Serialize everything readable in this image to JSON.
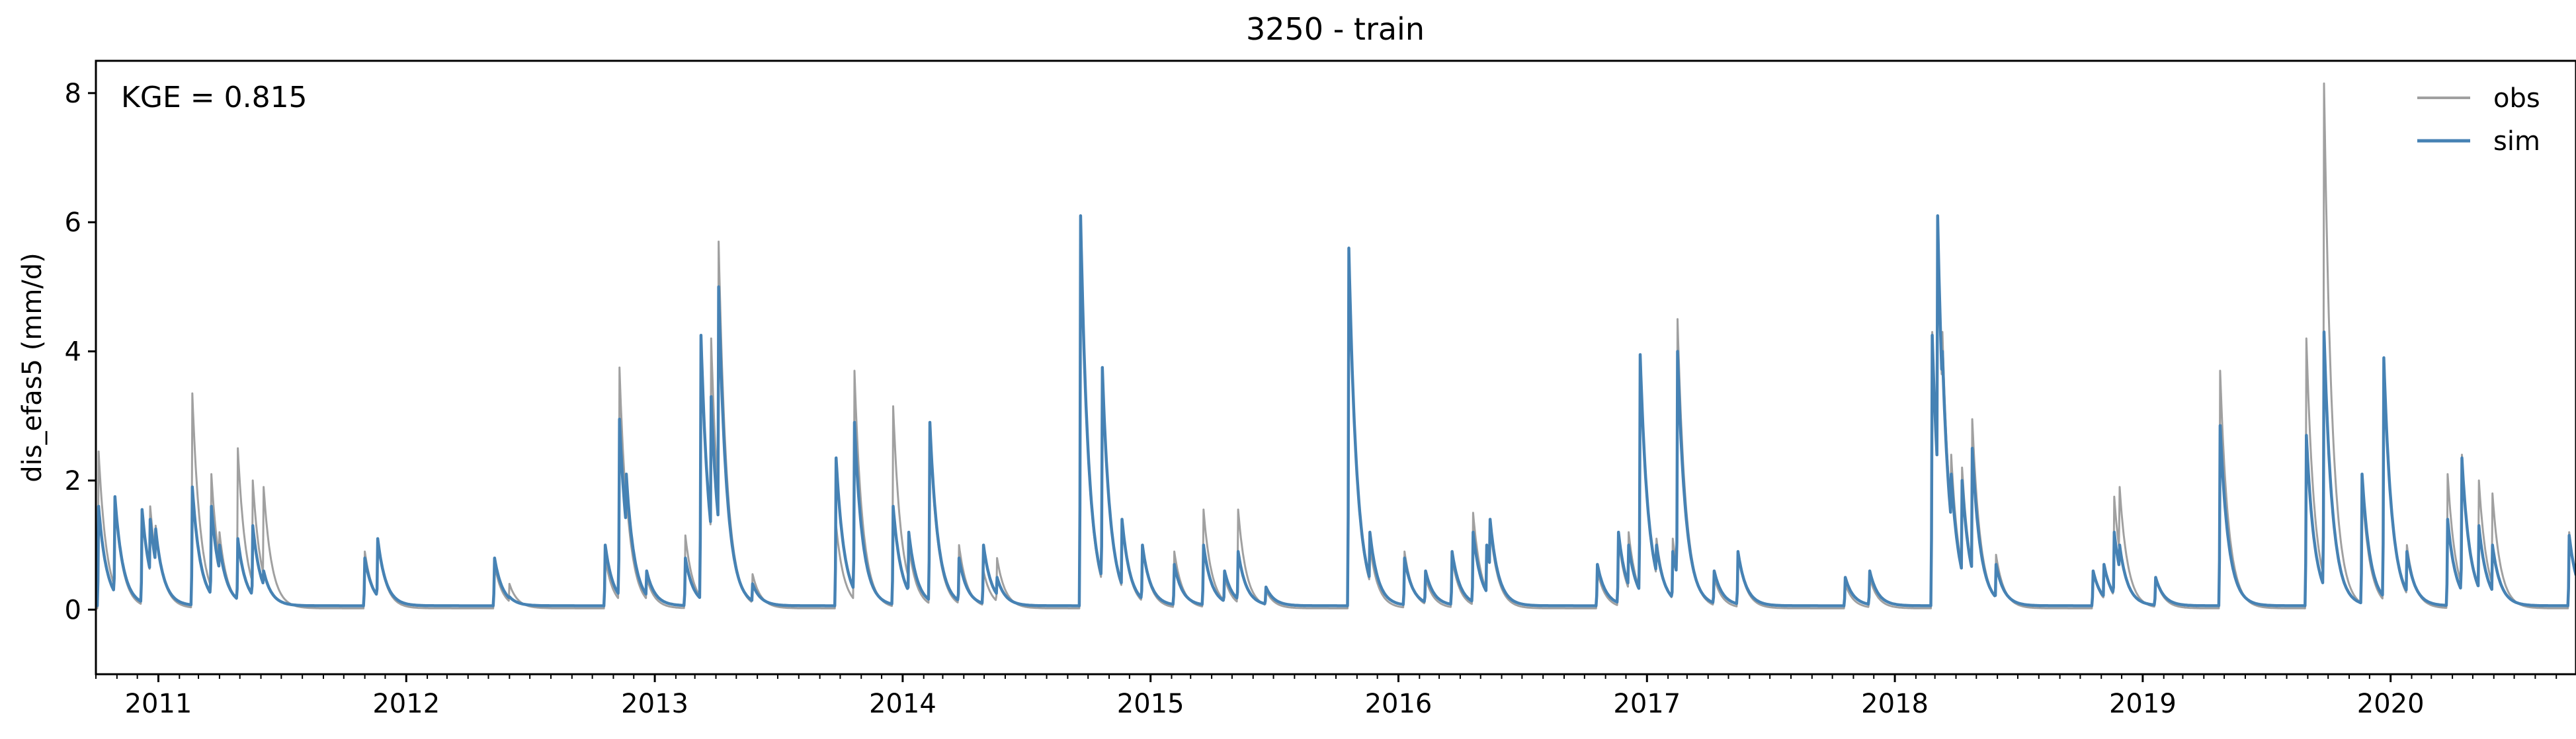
{
  "chart_data": {
    "type": "line",
    "title": "3250 - train",
    "ylabel": "dis_efas5 (mm/d)",
    "xlabel": "",
    "annotation": "KGE = 0.815",
    "xlim": [
      "2010-10-01",
      "2020-09-30"
    ],
    "ylim": [
      -1.0,
      8.5
    ],
    "yticks": [
      0,
      2,
      4,
      6,
      8
    ],
    "xticks": [
      {
        "date": "2011-01-01",
        "label": "2011"
      },
      {
        "date": "2012-01-01",
        "label": "2012"
      },
      {
        "date": "2013-01-01",
        "label": "2013"
      },
      {
        "date": "2014-01-01",
        "label": "2014"
      },
      {
        "date": "2015-01-01",
        "label": "2015"
      },
      {
        "date": "2016-01-01",
        "label": "2016"
      },
      {
        "date": "2017-01-01",
        "label": "2017"
      },
      {
        "date": "2018-01-01",
        "label": "2018"
      },
      {
        "date": "2019-01-01",
        "label": "2019"
      },
      {
        "date": "2020-01-01",
        "label": "2020"
      }
    ],
    "grid": false,
    "legend_position": "top-right",
    "baseline": {
      "obs": 0.02,
      "sim": 0.06
    },
    "recession_days": 12,
    "series": [
      {
        "name": "obs",
        "color": "#a0a0a0",
        "peaks": [
          [
            "2010-10-05",
            2.45
          ],
          [
            "2010-10-29",
            1.7
          ],
          [
            "2010-12-08",
            1.55
          ],
          [
            "2010-12-20",
            1.6
          ],
          [
            "2010-12-28",
            1.3
          ],
          [
            "2011-02-20",
            3.35
          ],
          [
            "2011-03-20",
            2.1
          ],
          [
            "2011-04-01",
            1.2
          ],
          [
            "2011-04-28",
            2.5
          ],
          [
            "2011-05-20",
            2.0
          ],
          [
            "2011-06-05",
            1.9
          ],
          [
            "2011-11-01",
            0.9
          ],
          [
            "2011-11-20",
            1.1
          ],
          [
            "2012-05-10",
            0.7
          ],
          [
            "2012-06-01",
            0.4
          ],
          [
            "2012-10-20",
            0.8
          ],
          [
            "2012-11-10",
            3.75
          ],
          [
            "2012-11-20",
            1.8
          ],
          [
            "2012-12-20",
            0.5
          ],
          [
            "2013-02-15",
            1.15
          ],
          [
            "2013-03-10",
            4.2
          ],
          [
            "2013-03-25",
            4.2
          ],
          [
            "2013-04-05",
            5.7
          ],
          [
            "2013-04-10",
            2.0
          ],
          [
            "2013-05-25",
            0.55
          ],
          [
            "2013-09-25",
            1.3
          ],
          [
            "2013-10-22",
            3.7
          ],
          [
            "2013-12-18",
            3.15
          ],
          [
            "2014-01-10",
            1.0
          ],
          [
            "2014-02-10",
            2.8
          ],
          [
            "2014-03-25",
            1.0
          ],
          [
            "2014-04-30",
            0.6
          ],
          [
            "2014-05-20",
            0.8
          ],
          [
            "2014-09-20",
            5.95
          ],
          [
            "2014-10-05",
            1.5
          ],
          [
            "2014-10-22",
            3.75
          ],
          [
            "2014-11-20",
            1.4
          ],
          [
            "2014-12-20",
            1.0
          ],
          [
            "2015-02-05",
            0.9
          ],
          [
            "2015-03-20",
            1.55
          ],
          [
            "2015-04-20",
            0.5
          ],
          [
            "2015-05-10",
            1.55
          ],
          [
            "2015-06-20",
            0.3
          ],
          [
            "2015-10-20",
            5.5
          ],
          [
            "2015-11-20",
            1.0
          ],
          [
            "2016-01-10",
            0.9
          ],
          [
            "2016-02-10",
            0.5
          ],
          [
            "2016-03-20",
            0.8
          ],
          [
            "2016-04-20",
            1.5
          ],
          [
            "2016-05-10",
            1.0
          ],
          [
            "2016-05-15",
            1.3
          ],
          [
            "2016-10-20",
            0.6
          ],
          [
            "2016-11-20",
            1.1
          ],
          [
            "2016-12-05",
            1.2
          ],
          [
            "2016-12-22",
            3.9
          ],
          [
            "2017-01-15",
            1.1
          ],
          [
            "2017-02-08",
            1.1
          ],
          [
            "2017-02-15",
            4.5
          ],
          [
            "2017-04-10",
            0.5
          ],
          [
            "2017-05-15",
            0.9
          ],
          [
            "2017-10-20",
            0.4
          ],
          [
            "2017-11-25",
            0.5
          ],
          [
            "2018-02-25",
            4.3
          ],
          [
            "2018-03-05",
            6.0
          ],
          [
            "2018-03-12",
            4.3
          ],
          [
            "2018-03-25",
            2.4
          ],
          [
            "2018-04-10",
            2.2
          ],
          [
            "2018-04-25",
            2.95
          ],
          [
            "2018-05-30",
            0.85
          ],
          [
            "2018-10-20",
            0.6
          ],
          [
            "2018-11-05",
            0.7
          ],
          [
            "2018-11-20",
            1.75
          ],
          [
            "2018-11-28",
            1.9
          ],
          [
            "2019-01-20",
            0.5
          ],
          [
            "2019-04-25",
            3.7
          ],
          [
            "2019-08-30",
            4.2
          ],
          [
            "2019-09-25",
            8.15
          ],
          [
            "2019-11-20",
            1.9
          ],
          [
            "2019-12-22",
            3.9
          ],
          [
            "2020-01-25",
            1.0
          ],
          [
            "2020-03-25",
            2.1
          ],
          [
            "2020-04-15",
            2.4
          ],
          [
            "2020-05-10",
            2.0
          ],
          [
            "2020-05-30",
            1.8
          ],
          [
            "2020-09-20",
            1.2
          ]
        ]
      },
      {
        "name": "sim",
        "color": "#4682b4",
        "peaks": [
          [
            "2010-10-05",
            1.6
          ],
          [
            "2010-10-29",
            1.75
          ],
          [
            "2010-12-08",
            1.55
          ],
          [
            "2010-12-20",
            1.4
          ],
          [
            "2010-12-28",
            1.25
          ],
          [
            "2011-02-20",
            1.9
          ],
          [
            "2011-03-20",
            1.6
          ],
          [
            "2011-04-01",
            1.0
          ],
          [
            "2011-04-28",
            1.1
          ],
          [
            "2011-05-20",
            1.3
          ],
          [
            "2011-06-05",
            0.6
          ],
          [
            "2011-11-01",
            0.8
          ],
          [
            "2011-11-20",
            1.1
          ],
          [
            "2012-05-10",
            0.8
          ],
          [
            "2012-06-01",
            0.2
          ],
          [
            "2012-10-20",
            1.0
          ],
          [
            "2012-11-10",
            2.95
          ],
          [
            "2012-11-20",
            2.1
          ],
          [
            "2012-12-20",
            0.6
          ],
          [
            "2013-02-15",
            0.8
          ],
          [
            "2013-03-10",
            4.25
          ],
          [
            "2013-03-25",
            3.3
          ],
          [
            "2013-04-05",
            5.0
          ],
          [
            "2013-04-10",
            1.5
          ],
          [
            "2013-05-25",
            0.4
          ],
          [
            "2013-09-25",
            2.35
          ],
          [
            "2013-10-22",
            2.9
          ],
          [
            "2013-12-18",
            1.6
          ],
          [
            "2014-01-10",
            1.2
          ],
          [
            "2014-02-10",
            2.9
          ],
          [
            "2014-03-25",
            0.8
          ],
          [
            "2014-04-30",
            1.0
          ],
          [
            "2014-05-20",
            0.5
          ],
          [
            "2014-09-20",
            6.1
          ],
          [
            "2014-10-05",
            1.5
          ],
          [
            "2014-10-22",
            3.75
          ],
          [
            "2014-11-20",
            1.4
          ],
          [
            "2014-12-20",
            1.0
          ],
          [
            "2015-02-05",
            0.7
          ],
          [
            "2015-03-20",
            1.0
          ],
          [
            "2015-04-20",
            0.6
          ],
          [
            "2015-05-10",
            0.9
          ],
          [
            "2015-06-20",
            0.35
          ],
          [
            "2015-10-20",
            5.6
          ],
          [
            "2015-11-20",
            1.2
          ],
          [
            "2016-01-10",
            0.8
          ],
          [
            "2016-02-10",
            0.6
          ],
          [
            "2016-03-20",
            0.9
          ],
          [
            "2016-04-20",
            1.2
          ],
          [
            "2016-05-10",
            1.0
          ],
          [
            "2016-05-15",
            1.4
          ],
          [
            "2016-10-20",
            0.7
          ],
          [
            "2016-11-20",
            1.2
          ],
          [
            "2016-12-05",
            1.0
          ],
          [
            "2016-12-22",
            3.95
          ],
          [
            "2017-01-15",
            1.0
          ],
          [
            "2017-02-08",
            0.9
          ],
          [
            "2017-02-15",
            4.0
          ],
          [
            "2017-04-10",
            0.6
          ],
          [
            "2017-05-15",
            0.9
          ],
          [
            "2017-10-20",
            0.5
          ],
          [
            "2017-11-25",
            0.6
          ],
          [
            "2018-02-25",
            4.25
          ],
          [
            "2018-03-05",
            6.1
          ],
          [
            "2018-03-12",
            4.0
          ],
          [
            "2018-03-25",
            2.1
          ],
          [
            "2018-04-10",
            2.0
          ],
          [
            "2018-04-25",
            2.5
          ],
          [
            "2018-05-30",
            0.7
          ],
          [
            "2018-10-20",
            0.6
          ],
          [
            "2018-11-05",
            0.7
          ],
          [
            "2018-11-20",
            1.2
          ],
          [
            "2018-11-28",
            1.0
          ],
          [
            "2019-01-20",
            0.5
          ],
          [
            "2019-04-25",
            2.85
          ],
          [
            "2019-08-30",
            2.7
          ],
          [
            "2019-09-25",
            4.3
          ],
          [
            "2019-11-20",
            2.1
          ],
          [
            "2019-12-22",
            3.9
          ],
          [
            "2020-01-25",
            0.9
          ],
          [
            "2020-03-25",
            1.4
          ],
          [
            "2020-04-15",
            2.35
          ],
          [
            "2020-05-10",
            1.3
          ],
          [
            "2020-05-30",
            1.0
          ],
          [
            "2020-09-20",
            1.15
          ]
        ]
      }
    ]
  }
}
